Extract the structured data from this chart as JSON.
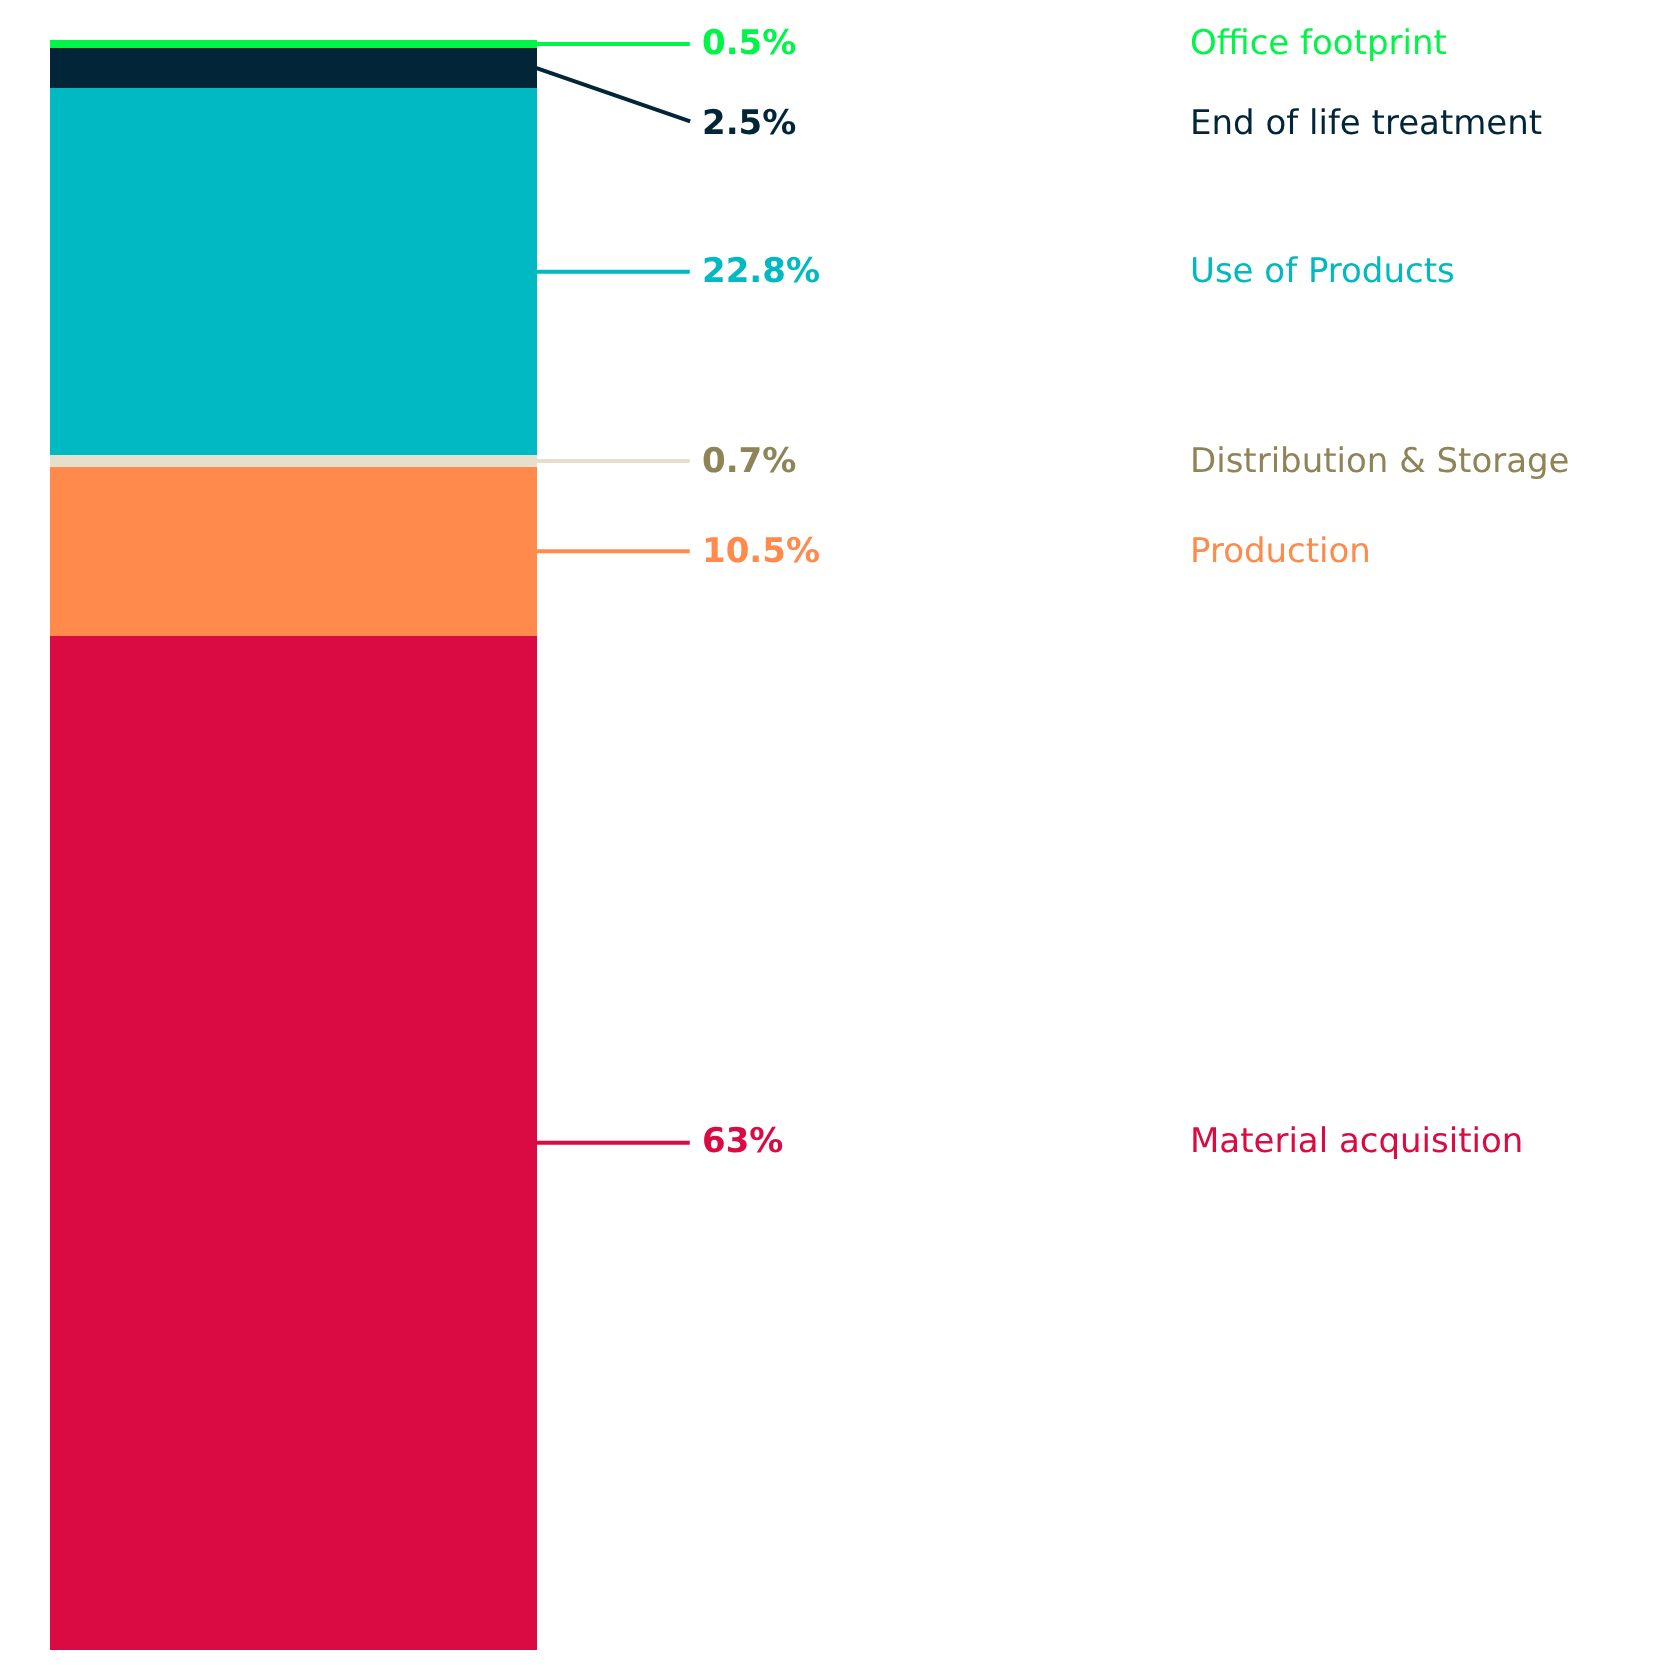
{
  "chart_data": {
    "type": "bar",
    "stacked": true,
    "categories": [
      null
    ],
    "series": [
      {
        "name": "Material acquisition",
        "color": "#d90b42",
        "values": [
          63
        ],
        "value_labels": [
          "63%"
        ]
      },
      {
        "name": "Production",
        "color": "#ff8a4c",
        "values": [
          10.5
        ],
        "value_labels": [
          "10.5%"
        ]
      },
      {
        "name": "Distribution & Storage",
        "color": "#e6dfcb",
        "values": [
          0.7
        ],
        "value_labels": [
          "0.7%"
        ]
      },
      {
        "name": "Use of Products",
        "color": "#00b9c2",
        "values": [
          22.8
        ],
        "value_labels": [
          "22.8%"
        ]
      },
      {
        "name": "End of life treatment",
        "color": "#022638",
        "values": [
          2.5
        ],
        "value_labels": [
          "2.5%"
        ]
      },
      {
        "name": "Office footprint",
        "color": "#00f548",
        "values": [
          0.5
        ],
        "value_labels": [
          "0.5%"
        ]
      }
    ],
    "legend": false
  }
}
